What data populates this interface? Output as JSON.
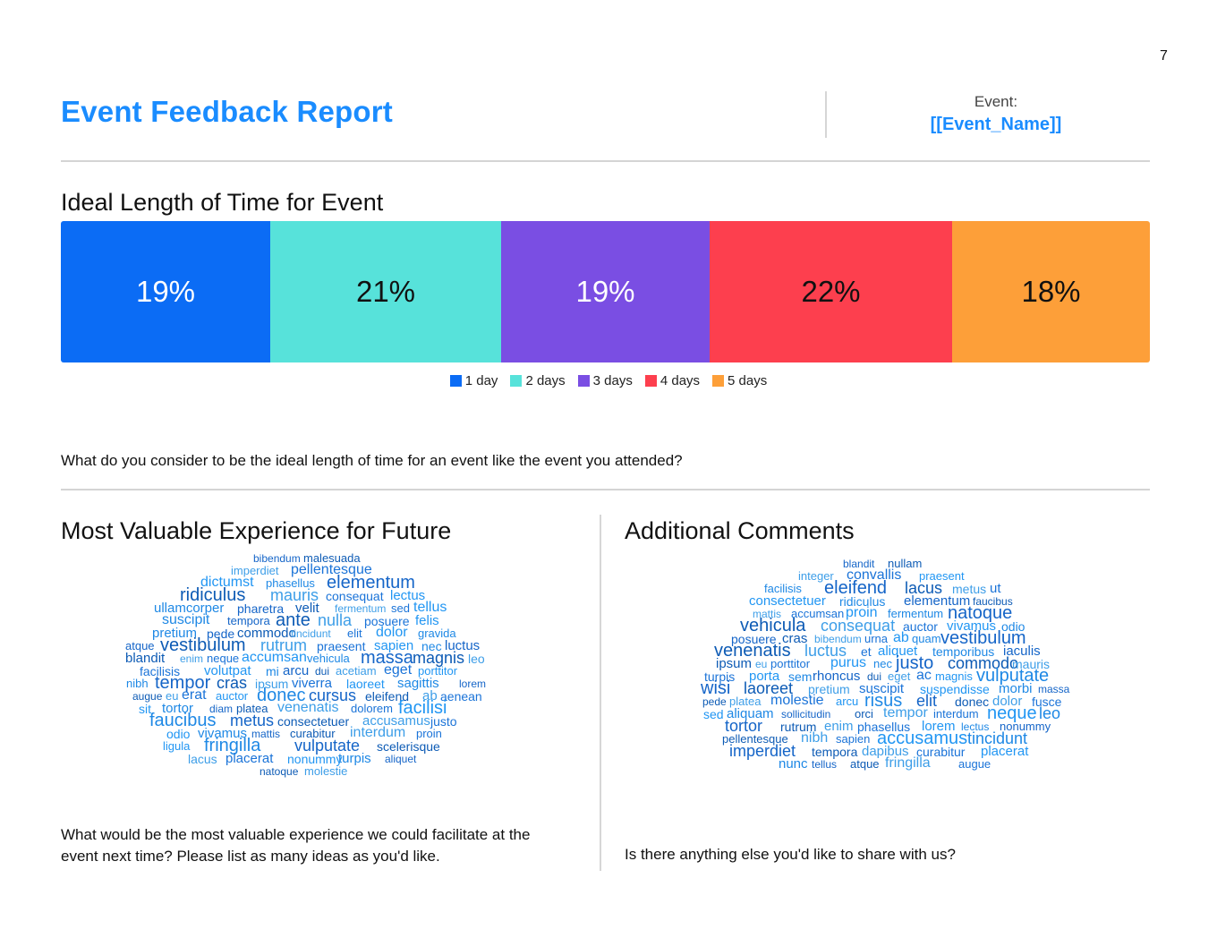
{
  "page_number": "7",
  "header": {
    "title": "Event Feedback Report",
    "event_label": "Event:",
    "event_name": "[[Event_Name]]"
  },
  "ideal_length": {
    "title": "Ideal Length of Time for Event",
    "question": "What do you consider to be the ideal length of time for an event like the event you attended?",
    "chart_data": {
      "type": "bar",
      "orientation": "horizontal-stacked-100",
      "categories": [
        "1 day",
        "2 days",
        "3 days",
        "4 days",
        "5 days"
      ],
      "values": [
        19,
        21,
        19,
        22,
        18
      ],
      "labels": [
        "19%",
        "21%",
        "19%",
        "22%",
        "18%"
      ],
      "colors": [
        "#0b6cf5",
        "#57e2da",
        "#7a4ee3",
        "#fd3f4e",
        "#fd9f39"
      ],
      "label_colors": [
        "#ffffff",
        "#111111",
        "#ffffff",
        "#111111",
        "#111111"
      ],
      "legend": "bottom-center",
      "grid": false
    }
  },
  "valuable": {
    "title": "Most Valuable Experience for Future",
    "question_line1": "What would be the most valuable experience we could facilitate at the",
    "question_line2": "event next time? Please list as many ideas as you'd like.",
    "words": [
      "bibendum",
      "malesuada",
      "imperdiet",
      "pellentesque",
      "dictumst",
      "phasellus",
      "elementum",
      "ridiculus",
      "mauris",
      "consequat",
      "lectus",
      "ullamcorper",
      "pharetra",
      "velit",
      "fermentum",
      "sed",
      "tellus",
      "suscipit",
      "tempora",
      "ante",
      "nulla",
      "posuere",
      "felis",
      "pretium",
      "pede",
      "commodo",
      "tincidunt",
      "elit",
      "dolor",
      "gravida",
      "atque",
      "vestibulum",
      "rutrum",
      "praesent",
      "sapien",
      "nec",
      "luctus",
      "blandit",
      "enim",
      "neque",
      "accumsan",
      "vehicula",
      "massa",
      "magnis",
      "leo",
      "facilisis",
      "volutpat",
      "mi",
      "arcu",
      "dui",
      "acetiam",
      "eget",
      "porttitor",
      "nibh",
      "tempor",
      "cras",
      "ipsum",
      "viverra",
      "laoreet",
      "sagittis",
      "lorem",
      "augue",
      "eu",
      "erat",
      "auctor",
      "donec",
      "cursus",
      "eleifend",
      "ab",
      "aenean",
      "sit",
      "tortor",
      "diam",
      "platea",
      "venenatis",
      "dolorem",
      "facilisi",
      "faucibus",
      "metus",
      "consectetuer",
      "accusamus",
      "justo",
      "odio",
      "vivamus",
      "mattis",
      "curabitur",
      "interdum",
      "proin",
      "ligula",
      "fringilla",
      "vulputate",
      "scelerisque",
      "lacus",
      "placerat",
      "nonummy",
      "turpis",
      "aliquet",
      "natoque",
      "molestie"
    ]
  },
  "comments": {
    "title": "Additional Comments",
    "question": "Is there anything else you'd like to share with us?",
    "words": [
      "blandit",
      "nullam",
      "integer",
      "convallis",
      "praesent",
      "facilisis",
      "eleifend",
      "lacus",
      "metus",
      "ut",
      "consectetuer",
      "ridiculus",
      "elementum",
      "faucibus",
      "mattis",
      "accumsan",
      "proin",
      "fermentum",
      "natoque",
      "vehicula",
      "consequat",
      "auctor",
      "vivamus",
      "odio",
      "posuere",
      "cras",
      "bibendum",
      "urna",
      "ab",
      "quam",
      "vestibulum",
      "venenatis",
      "luctus",
      "et",
      "aliquet",
      "temporibus",
      "iaculis",
      "ipsum",
      "eu",
      "porttitor",
      "purus",
      "nec",
      "justo",
      "commodo",
      "mauris",
      "turpis",
      "porta",
      "sem",
      "rhoncus",
      "dui",
      "eget",
      "ac",
      "magnis",
      "vulputate",
      "wisi",
      "laoreet",
      "pretium",
      "suscipit",
      "suspendisse",
      "morbi",
      "massa",
      "pede",
      "platea",
      "molestie",
      "arcu",
      "risus",
      "elit",
      "donec",
      "dolor",
      "fusce",
      "sed",
      "aliquam",
      "sollicitudin",
      "orci",
      "tempor",
      "interdum",
      "neque",
      "leo",
      "tortor",
      "rutrum",
      "enim",
      "phasellus",
      "lorem",
      "lectus",
      "nonummy",
      "pellentesque",
      "nibh",
      "sapien",
      "accusamus",
      "tincidunt",
      "imperdiet",
      "tempora",
      "dapibus",
      "curabitur",
      "placerat",
      "nunc",
      "tellus",
      "atque",
      "fringilla",
      "augue"
    ]
  }
}
